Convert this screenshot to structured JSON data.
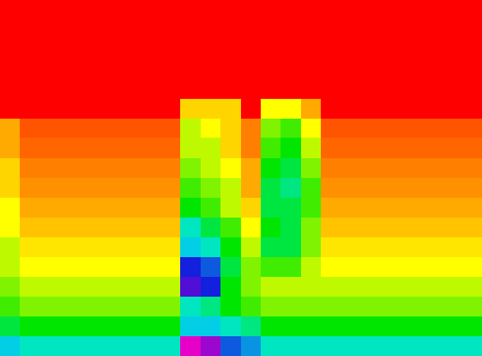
{
  "chart_data": {
    "type": "heatmap",
    "xlim": [
      0,
      24
    ],
    "ylim": [
      0,
      18
    ],
    "color_range": [
      0,
      10
    ],
    "grid": false,
    "tick_labels": false,
    "cells": [
      [
        0,
        0,
        0,
        0,
        0,
        0,
        0,
        0,
        0,
        0,
        0,
        0,
        0,
        0,
        0,
        0,
        0,
        0,
        0,
        0,
        0,
        0,
        0,
        0
      ],
      [
        0,
        0,
        0,
        0,
        0,
        0,
        0,
        0,
        0,
        0,
        0,
        0,
        0,
        0,
        0,
        0,
        0,
        0,
        0,
        0,
        0,
        0,
        0,
        0
      ],
      [
        0,
        0,
        0,
        0,
        0,
        0,
        0,
        0,
        0,
        0,
        0,
        0,
        0,
        0,
        0,
        0,
        0,
        0,
        0,
        0,
        0,
        0,
        0,
        0
      ],
      [
        0,
        0,
        0,
        0,
        0,
        0,
        0,
        0,
        0,
        0,
        0,
        0,
        0,
        0,
        0,
        0,
        0,
        0,
        0,
        0,
        0,
        0,
        0,
        0
      ],
      [
        0,
        0,
        0,
        0,
        0,
        0,
        0,
        0,
        0,
        0,
        0,
        0,
        0,
        0,
        0,
        0,
        0,
        0,
        0,
        0,
        0,
        0,
        0,
        0
      ],
      [
        0,
        0,
        0,
        0,
        0,
        0,
        0,
        0,
        0,
        2.5,
        2.5,
        2.5,
        0,
        3,
        3,
        2,
        0,
        0,
        0,
        0,
        0,
        0,
        0,
        0
      ],
      [
        2,
        1,
        1,
        1,
        1,
        1,
        1,
        1,
        1,
        3.5,
        3,
        2.5,
        1.5,
        4,
        4.5,
        3,
        1,
        1,
        1,
        1,
        1,
        1,
        1,
        1
      ],
      [
        2,
        1.2,
        1.2,
        1.2,
        1.2,
        1.2,
        1.2,
        1.2,
        1.2,
        3.5,
        3.5,
        2.5,
        1.5,
        4.5,
        5,
        3.5,
        1.2,
        1.2,
        1.2,
        1.2,
        1.2,
        1.2,
        1.2,
        1.2
      ],
      [
        2.5,
        1.5,
        1.5,
        1.5,
        1.5,
        1.5,
        1.5,
        1.5,
        1.5,
        4,
        3.5,
        3,
        2,
        5,
        5.5,
        4,
        1.5,
        1.5,
        1.5,
        1.5,
        1.5,
        1.5,
        1.5,
        1.5
      ],
      [
        2.5,
        1.7,
        1.7,
        1.7,
        1.7,
        1.7,
        1.7,
        1.7,
        1.7,
        4.5,
        4,
        3.5,
        2,
        5.5,
        6,
        4.5,
        1.7,
        1.7,
        1.7,
        1.7,
        1.7,
        1.7,
        1.7,
        1.7
      ],
      [
        3,
        2,
        2,
        2,
        2,
        2,
        2,
        2,
        2,
        5,
        4.5,
        3.5,
        2.5,
        5.5,
        5.5,
        4.5,
        2,
        2,
        2,
        2,
        2,
        2,
        2,
        2
      ],
      [
        3,
        2.3,
        2.3,
        2.3,
        2.3,
        2.3,
        2.3,
        2.3,
        2.3,
        6.5,
        5.5,
        4.5,
        3,
        5,
        5.5,
        4,
        2.3,
        2.3,
        2.3,
        2.3,
        2.3,
        2.3,
        2.3,
        2.3
      ],
      [
        3.5,
        2.7,
        2.7,
        2.7,
        2.7,
        2.7,
        2.7,
        2.7,
        2.7,
        7,
        6.5,
        5,
        3.5,
        5.5,
        5.5,
        4,
        2.7,
        2.7,
        2.7,
        2.7,
        2.7,
        2.7,
        2.7,
        2.7
      ],
      [
        3.5,
        3,
        3,
        3,
        3,
        3,
        3,
        3,
        3,
        8.5,
        8,
        5.5,
        4,
        4.5,
        4.5,
        3.5,
        3,
        3,
        3,
        3,
        3,
        3,
        3,
        3
      ],
      [
        4,
        3.5,
        3.5,
        3.5,
        3.5,
        3.5,
        3.5,
        3.5,
        3.5,
        9,
        8.5,
        5,
        4,
        3.5,
        3.5,
        3.5,
        3.5,
        3.5,
        3.5,
        3.5,
        3.5,
        3.5,
        3.5,
        3.5
      ],
      [
        4.5,
        4,
        4,
        4,
        4,
        4,
        4,
        4,
        4,
        6.5,
        6,
        5,
        4.5,
        4,
        4,
        4,
        4,
        4,
        4,
        4,
        4,
        4,
        4,
        4
      ],
      [
        5.5,
        5,
        5,
        5,
        5,
        5,
        5,
        5,
        5,
        7,
        7,
        6.5,
        6,
        5,
        5,
        5,
        5,
        5,
        5,
        5,
        5,
        5,
        5,
        5
      ],
      [
        7,
        6.5,
        6.5,
        6.5,
        6.5,
        6.5,
        6.5,
        6.5,
        6.5,
        10,
        9.5,
        8,
        7.5,
        6.5,
        6.5,
        6.5,
        6.5,
        6.5,
        6.5,
        6.5,
        6.5,
        6.5,
        6.5,
        6.5
      ]
    ]
  }
}
